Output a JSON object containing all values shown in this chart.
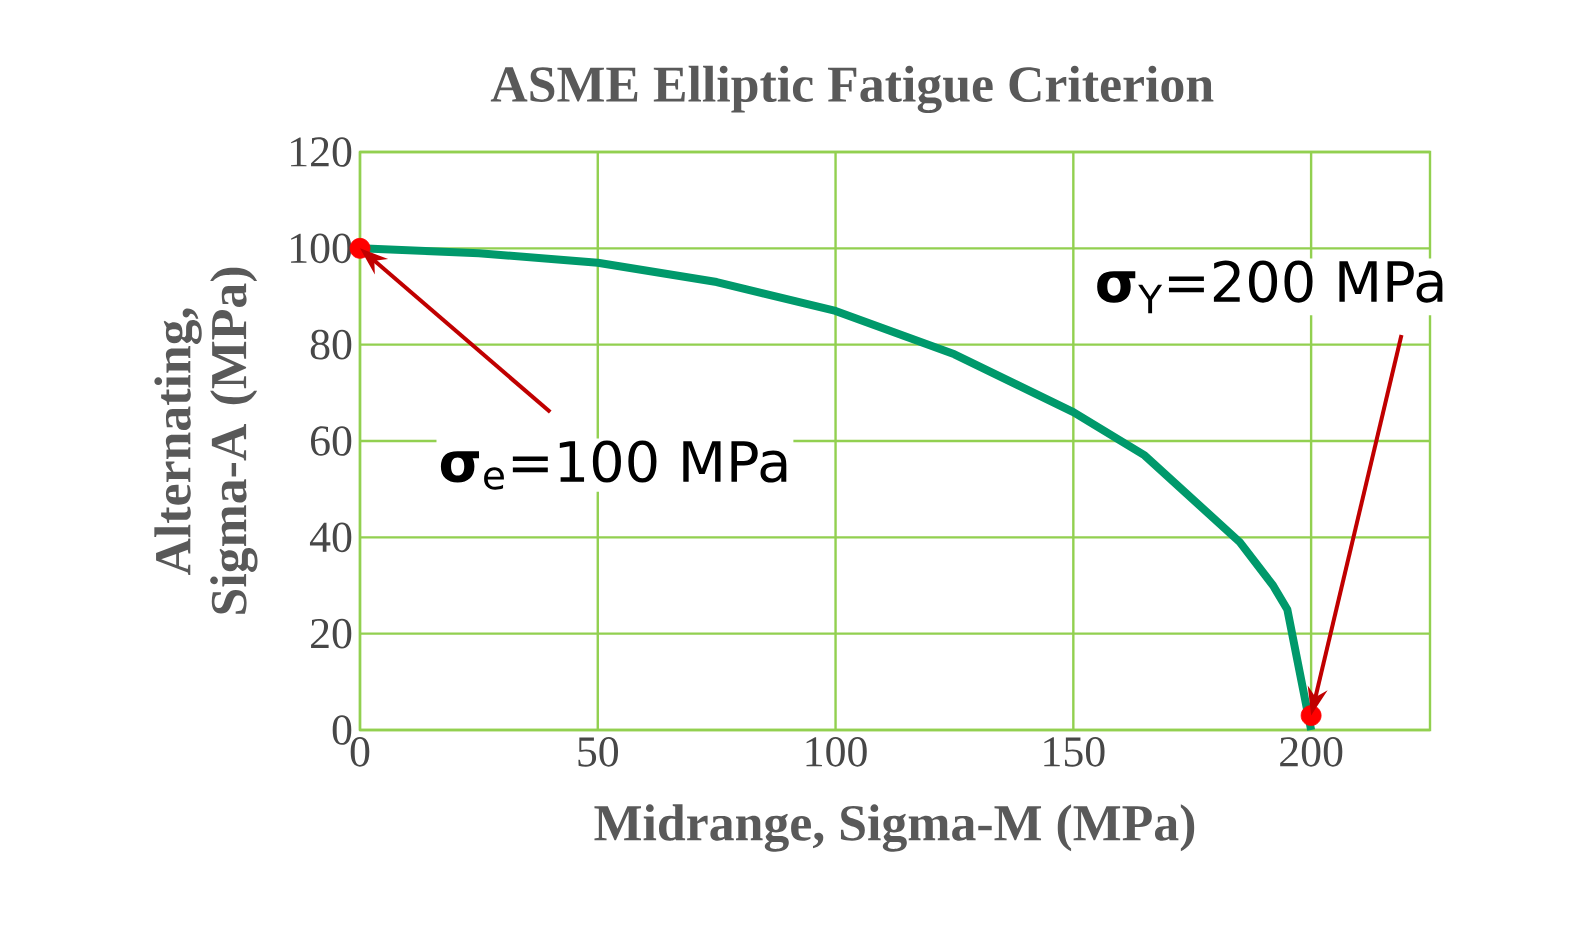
{
  "chart_data": {
    "type": "line",
    "title": "ASME Elliptic Fatigue Criterion",
    "xlabel": "Midrange, Sigma-M (MPa)",
    "ylabel": "Alternating, Sigma-A (MPa)",
    "xlim": [
      0,
      225
    ],
    "ylim": [
      0,
      120
    ],
    "xticks": [
      0,
      50,
      100,
      150,
      200
    ],
    "yticks": [
      0,
      20,
      40,
      60,
      80,
      100,
      120
    ],
    "grid": true,
    "line_style": "solid",
    "series": [
      {
        "color": "#00996b",
        "marker": "none",
        "x": [
          0,
          25,
          50,
          75,
          100,
          125,
          150,
          165,
          175,
          185,
          192,
          195,
          197,
          200
        ],
        "values": [
          100,
          99,
          97,
          93,
          87,
          78,
          66,
          57,
          48,
          39,
          30,
          25,
          15,
          0
        ]
      },
      {
        "type": "scatter",
        "color": "#ff0000",
        "marker": "circle",
        "x": [
          0,
          200
        ],
        "values": [
          100,
          3
        ]
      }
    ],
    "annotations": [
      {
        "text": "**σ**$_{e}$=100 MPa",
        "x": 0,
        "y": 100
      },
      {
        "text": "**σ**$_{Y}$=200 MPa",
        "x": 200,
        "y": 3
      }
    ]
  }
}
